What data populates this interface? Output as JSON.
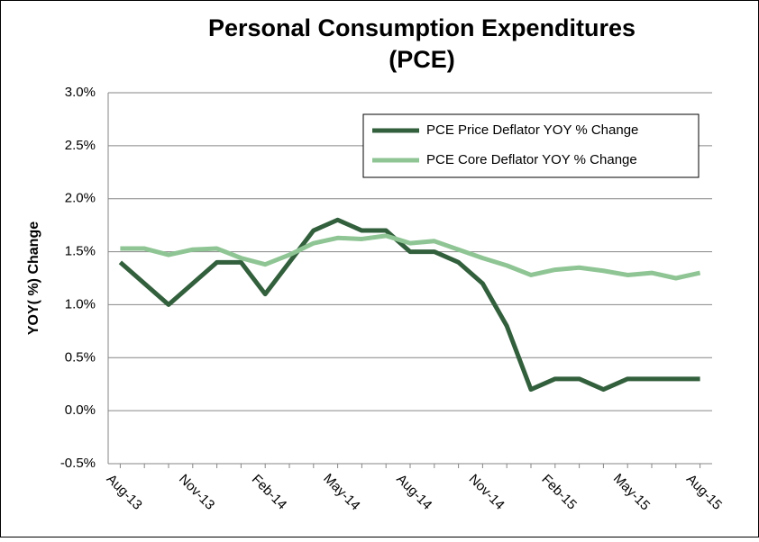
{
  "chart_data": {
    "type": "line",
    "title": [
      "Personal Consumption Expenditures",
      "(PCE)"
    ],
    "y_label": "YOY( %) Change",
    "categories": [
      "Aug-13",
      null,
      null,
      "Nov-13",
      null,
      null,
      "Feb-14",
      null,
      null,
      "May-14",
      null,
      null,
      "Aug-14",
      null,
      null,
      "Nov-14",
      null,
      null,
      "Feb-15",
      null,
      null,
      "May-15",
      null,
      null,
      "Aug-15"
    ],
    "series": [
      {
        "name": "PCE Price Deflator YOY % Change",
        "color": "#325f3c",
        "values": [
          1.4,
          1.2,
          1.0,
          1.2,
          1.4,
          1.4,
          1.1,
          1.4,
          1.7,
          1.8,
          1.7,
          1.7,
          1.5,
          1.5,
          1.4,
          1.2,
          0.8,
          0.2,
          0.3,
          0.3,
          0.2,
          0.3,
          0.3,
          0.3,
          0.3
        ]
      },
      {
        "name": "PCE Core Deflator YOY % Change",
        "color": "#8fc594",
        "values": [
          1.53,
          1.53,
          1.47,
          1.52,
          1.53,
          1.44,
          1.38,
          1.47,
          1.58,
          1.63,
          1.62,
          1.65,
          1.58,
          1.6,
          1.52,
          1.44,
          1.37,
          1.28,
          1.33,
          1.35,
          1.32,
          1.28,
          1.3,
          1.25,
          1.3
        ]
      }
    ],
    "ylim": [
      -0.5,
      3.0
    ],
    "yticks": [
      {
        "value": -0.5,
        "label": "-0.5%"
      },
      {
        "value": 0,
        "label": "0.0%"
      },
      {
        "value": 0.5,
        "label": "0.5%"
      },
      {
        "value": 1.0,
        "label": "1.0%"
      },
      {
        "value": 1.5,
        "label": "1.5%"
      },
      {
        "value": 2.0,
        "label": "2.0%"
      },
      {
        "value": 2.5,
        "label": "2.5%"
      },
      {
        "value": 3.0,
        "label": "3.0%"
      }
    ],
    "grid": true,
    "legend": "top-right"
  }
}
